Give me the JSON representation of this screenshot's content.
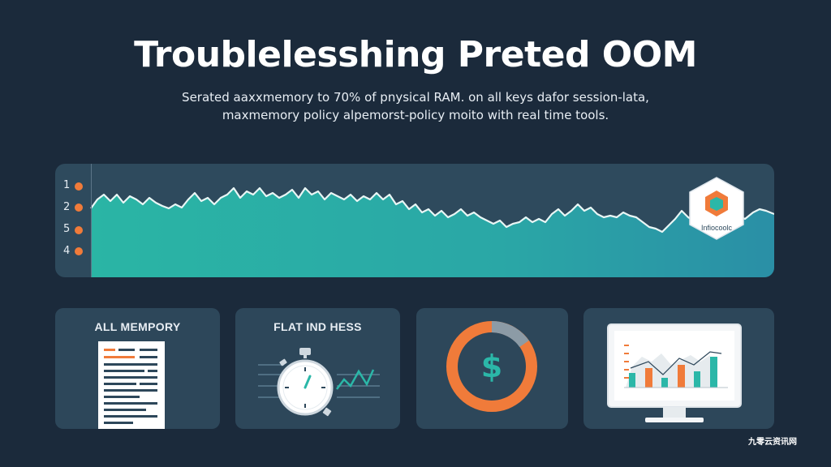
{
  "header": {
    "title": "Troublelesshing Preted OOM",
    "subtitle_line1": "Serated aaxxmemory to 70% of pnysical RAM. on all keys dafor session-lata,",
    "subtitle_line2": "maxmemory policy alpemorst-policy moito with real time tools."
  },
  "graph": {
    "row_labels": [
      "1",
      "2",
      "5",
      "4"
    ],
    "area_color": "#2bb7a8",
    "dot_color": "#f07b3a",
    "logo_label": "Infiocoolc"
  },
  "cards": {
    "memory": {
      "title": "ALL MEMPORY"
    },
    "flat": {
      "title": "FLAT IND HESS"
    },
    "cost": {
      "symbol": "$"
    },
    "monitor": {}
  },
  "watermark": "九零云资讯网"
}
